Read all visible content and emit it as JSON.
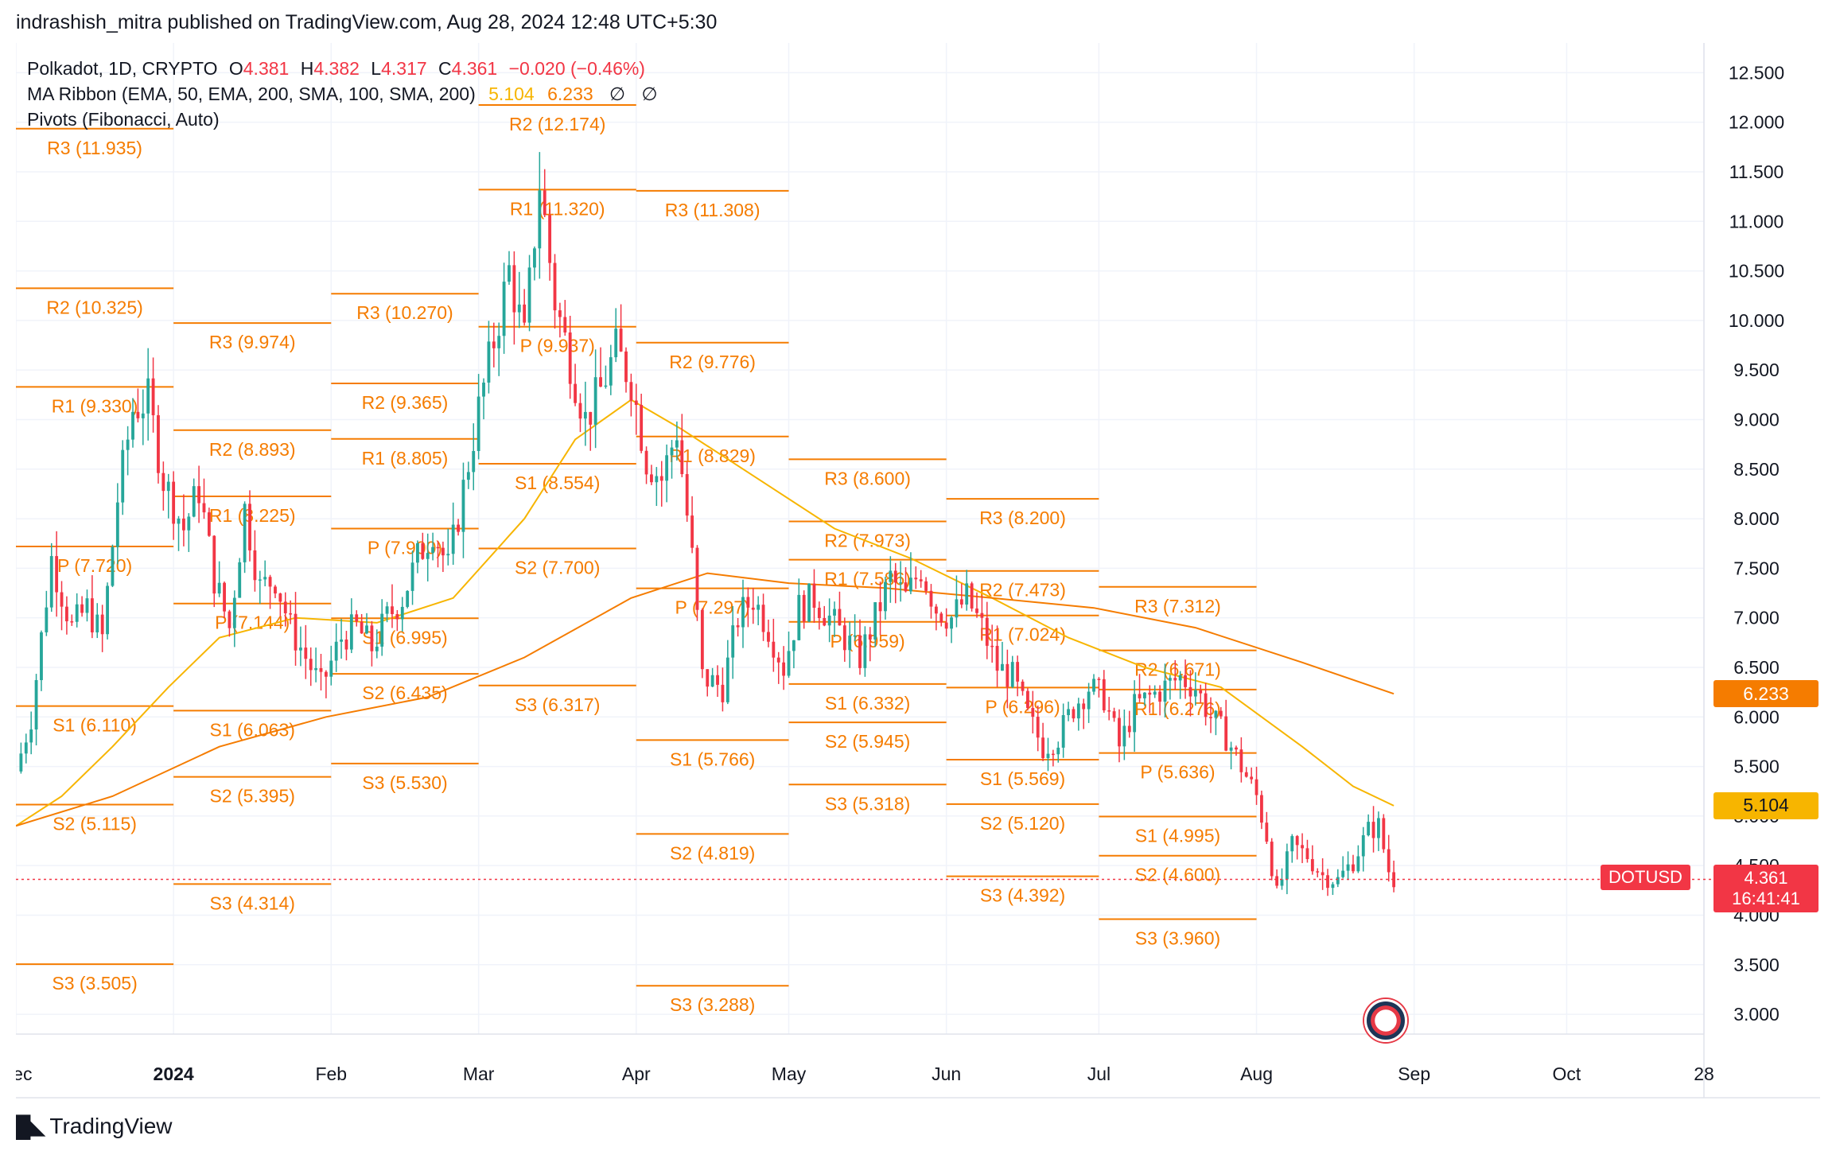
{
  "attribution": "indrashish_mitra published on TradingView.com, Aug 28, 2024 12:48 UTC+5:30",
  "legend": {
    "symbol_line": "Polkadot, 1D, CRYPTO",
    "open_label": "O",
    "open": "4.381",
    "high_label": "H",
    "high": "4.382",
    "low_label": "L",
    "low": "4.317",
    "close_label": "C",
    "close": "4.361",
    "change": "−0.020 (−0.46%)",
    "ma_label": "MA Ribbon (EMA, 50, EMA, 200, SMA, 100, SMA, 200)",
    "ma_value_a": "5.104",
    "ma_value_b": "6.233",
    "null_glyph": "∅",
    "pivots_label": "Pivots (Fibonacci, Auto)"
  },
  "footer": {
    "logo_text": "TradingView",
    "logo_icon": "tradingview-logo-icon"
  },
  "price_tags": {
    "ma_b": "6.233",
    "ma_a": "5.104",
    "ticker": "DOTUSD",
    "last": "4.361",
    "countdown": "16:41:41"
  },
  "colors": {
    "up": "#26a69a",
    "down": "#f23645",
    "pivot": "#f57c00",
    "ma_a": "#f7b500",
    "ma_b": "#f57c00",
    "grid": "#f0f3fa",
    "text": "#131722"
  },
  "chart_data": {
    "type": "candlestick",
    "symbol": "DOTUSD",
    "interval": "1D",
    "ylim": [
      2.8,
      12.8
    ],
    "y_ticks": [
      "3.000",
      "3.500",
      "4.000",
      "4.500",
      "5.000",
      "5.500",
      "6.000",
      "6.500",
      "7.000",
      "7.500",
      "8.000",
      "8.500",
      "9.000",
      "9.500",
      "10.000",
      "10.500",
      "11.000",
      "11.500",
      "12.000",
      "12.500"
    ],
    "x_range": [
      "2023-12-01",
      "2024-10-28"
    ],
    "x_ticks": [
      {
        "label": "Dec",
        "date": "2023-12-01"
      },
      {
        "label": "2024",
        "date": "2024-01-01",
        "bold": true
      },
      {
        "label": "Feb",
        "date": "2024-02-01"
      },
      {
        "label": "Mar",
        "date": "2024-03-01"
      },
      {
        "label": "Apr",
        "date": "2024-04-01"
      },
      {
        "label": "May",
        "date": "2024-05-01"
      },
      {
        "label": "Jun",
        "date": "2024-06-01"
      },
      {
        "label": "Jul",
        "date": "2024-07-01"
      },
      {
        "label": "Aug",
        "date": "2024-08-01"
      },
      {
        "label": "Sep",
        "date": "2024-09-01"
      },
      {
        "label": "Oct",
        "date": "2024-10-01"
      },
      {
        "label": "28",
        "date": "2024-10-28"
      }
    ],
    "last_price": 4.361,
    "candle_anchors": [
      [
        "2023-12-01",
        5.45
      ],
      [
        "2023-12-04",
        6.0
      ],
      [
        "2023-12-08",
        7.6
      ],
      [
        "2023-12-12",
        6.9
      ],
      [
        "2023-12-15",
        7.1
      ],
      [
        "2023-12-18",
        6.8
      ],
      [
        "2023-12-21",
        8.2
      ],
      [
        "2023-12-24",
        9.1
      ],
      [
        "2023-12-27",
        9.2
      ],
      [
        "2023-12-30",
        8.4
      ],
      [
        "2024-01-03",
        7.9
      ],
      [
        "2024-01-06",
        8.3
      ],
      [
        "2024-01-09",
        7.4
      ],
      [
        "2024-01-12",
        6.9
      ],
      [
        "2024-01-15",
        8.1
      ],
      [
        "2024-01-18",
        7.3
      ],
      [
        "2024-01-21",
        7.4
      ],
      [
        "2024-01-24",
        6.9
      ],
      [
        "2024-01-27",
        6.6
      ],
      [
        "2024-01-30",
        6.3
      ],
      [
        "2024-02-03",
        6.8
      ],
      [
        "2024-02-06",
        6.9
      ],
      [
        "2024-02-09",
        6.7
      ],
      [
        "2024-02-12",
        7.0
      ],
      [
        "2024-02-15",
        7.2
      ],
      [
        "2024-02-18",
        7.6
      ],
      [
        "2024-02-21",
        7.9
      ],
      [
        "2024-02-24",
        7.5
      ],
      [
        "2024-02-27",
        8.3
      ],
      [
        "2024-03-01",
        9.1
      ],
      [
        "2024-03-04",
        9.8
      ],
      [
        "2024-03-07",
        10.5
      ],
      [
        "2024-03-10",
        9.8
      ],
      [
        "2024-03-13",
        11.4
      ],
      [
        "2024-03-16",
        10.2
      ],
      [
        "2024-03-19",
        9.6
      ],
      [
        "2024-03-22",
        9.0
      ],
      [
        "2024-03-25",
        9.3
      ],
      [
        "2024-03-28",
        9.7
      ],
      [
        "2024-03-31",
        9.4
      ],
      [
        "2024-04-03",
        8.6
      ],
      [
        "2024-04-06",
        8.4
      ],
      [
        "2024-04-09",
        8.9
      ],
      [
        "2024-04-12",
        7.6
      ],
      [
        "2024-04-14",
        6.4
      ],
      [
        "2024-04-18",
        6.3
      ],
      [
        "2024-04-21",
        7.0
      ],
      [
        "2024-04-24",
        7.2
      ],
      [
        "2024-04-27",
        6.9
      ],
      [
        "2024-04-30",
        6.5
      ],
      [
        "2024-05-03",
        7.1
      ],
      [
        "2024-05-06",
        7.2
      ],
      [
        "2024-05-09",
        7.0
      ],
      [
        "2024-05-12",
        6.8
      ],
      [
        "2024-05-15",
        6.6
      ],
      [
        "2024-05-18",
        7.0
      ],
      [
        "2024-05-21",
        7.4
      ],
      [
        "2024-05-24",
        7.2
      ],
      [
        "2024-05-27",
        7.5
      ],
      [
        "2024-05-30",
        7.1
      ],
      [
        "2024-06-02",
        7.0
      ],
      [
        "2024-06-05",
        7.2
      ],
      [
        "2024-06-08",
        6.9
      ],
      [
        "2024-06-11",
        6.5
      ],
      [
        "2024-06-14",
        6.4
      ],
      [
        "2024-06-17",
        6.0
      ],
      [
        "2024-06-20",
        5.7
      ],
      [
        "2024-06-23",
        5.8
      ],
      [
        "2024-06-26",
        6.1
      ],
      [
        "2024-06-29",
        6.3
      ],
      [
        "2024-07-02",
        6.2
      ],
      [
        "2024-07-05",
        5.7
      ],
      [
        "2024-07-08",
        6.1
      ],
      [
        "2024-07-11",
        6.2
      ],
      [
        "2024-07-14",
        6.3
      ],
      [
        "2024-07-17",
        6.4
      ],
      [
        "2024-07-20",
        6.3
      ],
      [
        "2024-07-23",
        6.0
      ],
      [
        "2024-07-26",
        5.8
      ],
      [
        "2024-07-29",
        5.5
      ],
      [
        "2024-08-01",
        5.2
      ],
      [
        "2024-08-03",
        4.8
      ],
      [
        "2024-08-05",
        4.2
      ],
      [
        "2024-08-08",
        4.7
      ],
      [
        "2024-08-11",
        4.6
      ],
      [
        "2024-08-14",
        4.4
      ],
      [
        "2024-08-17",
        4.35
      ],
      [
        "2024-08-20",
        4.55
      ],
      [
        "2024-08-23",
        4.85
      ],
      [
        "2024-08-25",
        4.9
      ],
      [
        "2024-08-27",
        4.45
      ],
      [
        "2024-08-28",
        4.361
      ]
    ],
    "ema50": [
      [
        "2023-12-01",
        4.9
      ],
      [
        "2023-12-10",
        5.2
      ],
      [
        "2023-12-20",
        5.7
      ],
      [
        "2023-12-31",
        6.3
      ],
      [
        "2024-01-10",
        6.8
      ],
      [
        "2024-01-25",
        7.0
      ],
      [
        "2024-02-10",
        6.95
      ],
      [
        "2024-02-25",
        7.2
      ],
      [
        "2024-03-10",
        8.0
      ],
      [
        "2024-03-20",
        8.8
      ],
      [
        "2024-03-31",
        9.2
      ],
      [
        "2024-04-10",
        8.9
      ],
      [
        "2024-04-25",
        8.4
      ],
      [
        "2024-05-10",
        7.9
      ],
      [
        "2024-05-25",
        7.6
      ],
      [
        "2024-06-10",
        7.2
      ],
      [
        "2024-06-25",
        6.8
      ],
      [
        "2024-07-10",
        6.5
      ],
      [
        "2024-07-25",
        6.3
      ],
      [
        "2024-08-10",
        5.7
      ],
      [
        "2024-08-20",
        5.3
      ],
      [
        "2024-08-28",
        5.104
      ]
    ],
    "ema200": [
      [
        "2023-12-01",
        4.9
      ],
      [
        "2023-12-20",
        5.2
      ],
      [
        "2024-01-10",
        5.7
      ],
      [
        "2024-01-31",
        6.0
      ],
      [
        "2024-02-20",
        6.2
      ],
      [
        "2024-03-10",
        6.6
      ],
      [
        "2024-03-31",
        7.2
      ],
      [
        "2024-04-15",
        7.45
      ],
      [
        "2024-05-01",
        7.35
      ],
      [
        "2024-05-20",
        7.3
      ],
      [
        "2024-06-10",
        7.2
      ],
      [
        "2024-06-30",
        7.1
      ],
      [
        "2024-07-20",
        6.9
      ],
      [
        "2024-08-10",
        6.55
      ],
      [
        "2024-08-28",
        6.233
      ]
    ],
    "pivot_periods": [
      {
        "start": "2023-12-01",
        "end": "2024-01-01",
        "levels": [
          [
            "R3",
            "11.935"
          ],
          [
            "R2",
            "10.325"
          ],
          [
            "R1",
            "9.330"
          ],
          [
            "P",
            "7.720"
          ],
          [
            "S1",
            "6.110"
          ],
          [
            "S2",
            "5.115"
          ],
          [
            "S3",
            "3.505"
          ]
        ]
      },
      {
        "start": "2024-01-01",
        "end": "2024-02-01",
        "levels": [
          [
            "R3",
            "9.974"
          ],
          [
            "R2",
            "8.893"
          ],
          [
            "R1",
            "8.225"
          ],
          [
            "P",
            "7.144"
          ],
          [
            "S1",
            "6.063"
          ],
          [
            "S2",
            "5.395"
          ],
          [
            "S3",
            "4.314"
          ]
        ]
      },
      {
        "start": "2024-02-01",
        "end": "2024-03-01",
        "levels": [
          [
            "R3",
            "10.270"
          ],
          [
            "R2",
            "9.365"
          ],
          [
            "R1",
            "8.805"
          ],
          [
            "P",
            "7.900"
          ],
          [
            "S1",
            "6.995"
          ],
          [
            "S2",
            "6.435"
          ],
          [
            "S3",
            "5.530"
          ]
        ]
      },
      {
        "start": "2024-03-01",
        "end": "2024-04-01",
        "levels": [
          [
            "R2",
            "12.174"
          ],
          [
            "R1",
            "11.320"
          ],
          [
            "P",
            "9.937"
          ],
          [
            "S1",
            "8.554"
          ],
          [
            "S2",
            "7.700"
          ],
          [
            "S3",
            "6.317"
          ]
        ]
      },
      {
        "start": "2024-04-01",
        "end": "2024-05-01",
        "levels": [
          [
            "R3",
            "11.308"
          ],
          [
            "R2",
            "9.776"
          ],
          [
            "R1",
            "8.829"
          ],
          [
            "P",
            "7.297"
          ],
          [
            "S1",
            "5.766"
          ],
          [
            "S2",
            "4.819"
          ],
          [
            "S3",
            "3.288"
          ]
        ]
      },
      {
        "start": "2024-05-01",
        "end": "2024-06-01",
        "levels": [
          [
            "R3",
            "8.600"
          ],
          [
            "R2",
            "7.973"
          ],
          [
            "R1",
            "7.586"
          ],
          [
            "P",
            "6.959"
          ],
          [
            "S1",
            "6.332"
          ],
          [
            "S2",
            "5.945"
          ],
          [
            "S3",
            "5.318"
          ]
        ]
      },
      {
        "start": "2024-06-01",
        "end": "2024-07-01",
        "levels": [
          [
            "R3",
            "8.200"
          ],
          [
            "R2",
            "7.473"
          ],
          [
            "R1",
            "7.024"
          ],
          [
            "P",
            "6.296"
          ],
          [
            "S1",
            "5.569"
          ],
          [
            "S2",
            "5.120"
          ],
          [
            "S3",
            "4.392"
          ]
        ]
      },
      {
        "start": "2024-07-01",
        "end": "2024-08-01",
        "levels": [
          [
            "R3",
            "7.312"
          ],
          [
            "R2",
            "6.671"
          ],
          [
            "R1",
            "6.276"
          ],
          [
            "P",
            "5.636"
          ],
          [
            "S1",
            "4.995"
          ],
          [
            "S2",
            "4.600"
          ],
          [
            "S3",
            "3.960"
          ]
        ]
      }
    ]
  }
}
